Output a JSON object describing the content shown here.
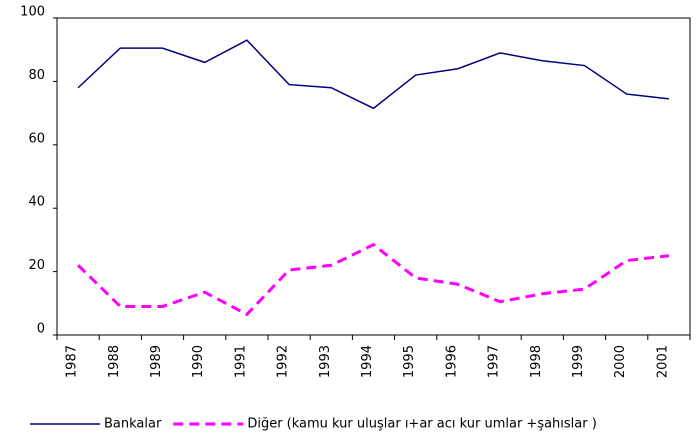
{
  "chart_data": {
    "type": "line",
    "categories": [
      "1987",
      "1988",
      "1989",
      "1990",
      "1991",
      "1992",
      "1993",
      "1994",
      "1995",
      "1996",
      "1997",
      "1998",
      "1999",
      "2000",
      "2001"
    ],
    "series": [
      {
        "name": "Bankalar",
        "color": "#000080",
        "dashed": false,
        "values": [
          78,
          90.5,
          90.5,
          86,
          93,
          79,
          78,
          71.5,
          82,
          84,
          89,
          86.5,
          85,
          76,
          74.5
        ]
      },
      {
        "name": "Diğer  (kamu kur uluşlar ı+ar acı kur umlar +şahıslar )",
        "color": "#ff00ff",
        "dashed": true,
        "values": [
          22,
          9,
          9,
          13.5,
          6.5,
          20.5,
          22,
          28.5,
          18,
          16,
          10.5,
          13,
          14.5,
          23.5,
          25
        ]
      }
    ],
    "ylim": [
      0,
      100
    ],
    "yticks": [
      0,
      20,
      40,
      60,
      80,
      100
    ],
    "grid": false,
    "legend": "bottom"
  }
}
